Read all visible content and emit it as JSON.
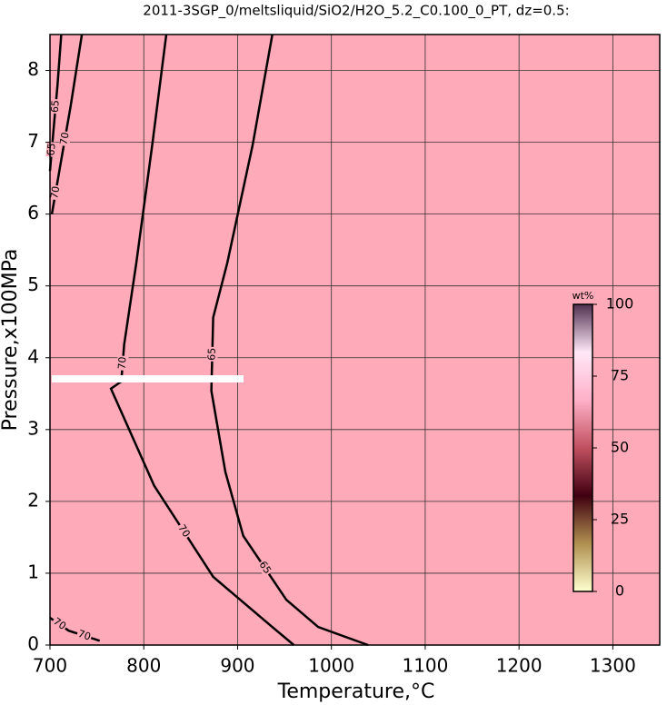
{
  "chart_data": {
    "type": "contour",
    "title": "2011-3SGP_0/meltsliquid/SiO2/H2O_5.2_C0.100_0_PT, dz=0.5:",
    "x_label": "Temperature,°C",
    "y_label": "Pressure,x100MPa",
    "xlim": [
      700,
      1350
    ],
    "ylim": [
      0,
      8.5
    ],
    "xticks": [
      700,
      800,
      900,
      1000,
      1100,
      1200,
      1300
    ],
    "yticks": [
      0,
      1,
      2,
      3,
      4,
      5,
      6,
      7,
      8
    ],
    "grid": true,
    "fill_color": "#ffaab8",
    "contours": [
      {
        "level": 70,
        "x": [
          734,
          722,
          710,
          702
        ],
        "y": [
          8.5,
          7.5,
          6.6,
          6.0
        ]
      },
      {
        "level": 65,
        "x": [
          712,
          708,
          704,
          700
        ],
        "y": [
          8.5,
          7.8,
          7.2,
          6.6
        ]
      },
      {
        "level": 70,
        "x": [
          824,
          809,
          792,
          779,
          776,
          765,
          811,
          874,
          937,
          960
        ],
        "y": [
          8.5,
          6.96,
          5.32,
          4.18,
          3.67,
          3.57,
          2.22,
          0.95,
          0.25,
          0
        ]
      },
      {
        "level": 65,
        "x": [
          937,
          916,
          889,
          874,
          872,
          887,
          906,
          952,
          986,
          1039
        ],
        "y": [
          8.5,
          6.96,
          5.32,
          4.56,
          3.54,
          2.41,
          1.52,
          0.63,
          0.25,
          0
        ]
      },
      {
        "level": 70,
        "x": [
          700,
          720,
          753
        ],
        "y": [
          0.38,
          0.2,
          0.06
        ]
      }
    ],
    "colorbar": {
      "label": "wt%",
      "lim": [
        0,
        100
      ],
      "ticks": [
        0,
        25,
        50,
        75,
        100
      ],
      "colors": [
        "#ffffd0",
        "#b09050",
        "#400010",
        "#c05060",
        "#ffb0c8",
        "#ffe8f8",
        "#503050"
      ]
    }
  }
}
